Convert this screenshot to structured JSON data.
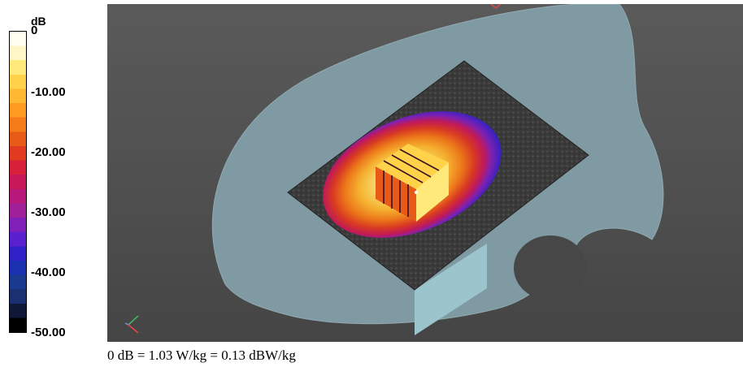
{
  "legend": {
    "unit": "dB",
    "ticks": [
      "0",
      "-10.00",
      "-20.00",
      "-30.00",
      "-40.00",
      "-50.00"
    ],
    "colors": [
      "#fffff0",
      "#fff6c8",
      "#ffe97a",
      "#ffd24a",
      "#ffb830",
      "#ff9a20",
      "#f57a18",
      "#e85a18",
      "#e03a20",
      "#d8203a",
      "#c8185a",
      "#b8187a",
      "#a0209a",
      "#8020b8",
      "#5a20d0",
      "#3020c8",
      "#1a30b0",
      "#1a3a90",
      "#1a3070",
      "#101838",
      "#000000"
    ]
  },
  "footer": {
    "text": "0 dB = 1.03 W/kg = 0.13 dBW/kg"
  }
}
